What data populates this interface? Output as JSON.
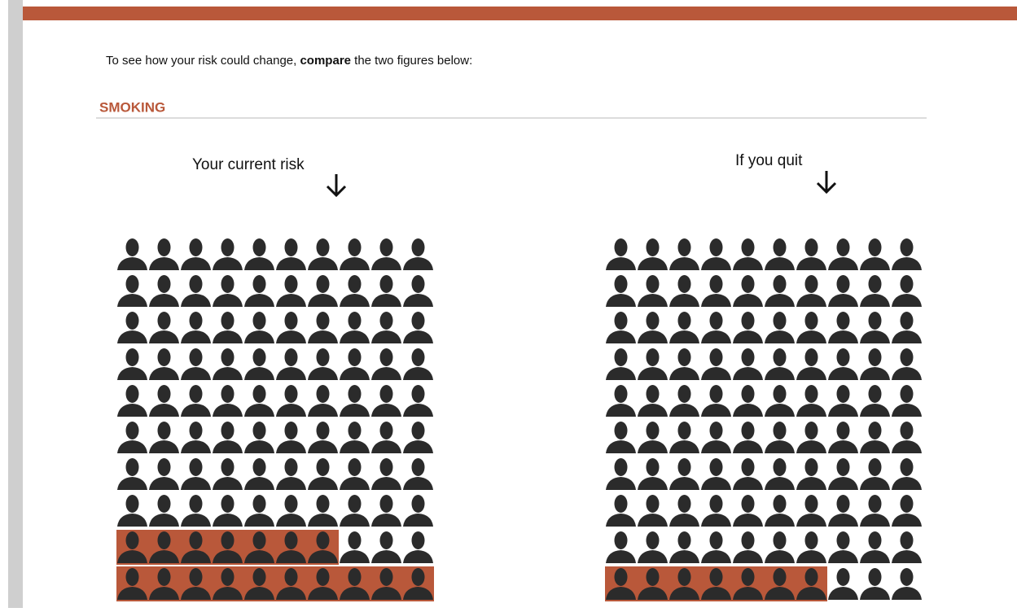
{
  "intro": [
    "To see how your risk could change, ",
    "compare",
    " the two figures below:"
  ],
  "section": {
    "title": "SMOKING"
  },
  "figures": [
    {
      "label": "Your current risk",
      "total": 100,
      "highlighted": 17
    },
    {
      "label": "If you quit",
      "total": 100,
      "highlighted": 7
    }
  ],
  "highlight_color": "#b9583a",
  "icon_color": "#2b2b2b"
}
